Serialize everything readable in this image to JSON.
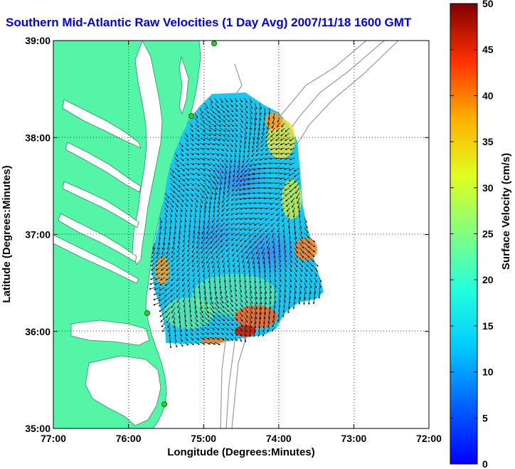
{
  "title": "Southern Mid-Atlantic Raw Velocities (1 Day Avg) 2007/11/18 1600 GMT",
  "x_axis_label": "Longitude (Degrees:Minutes)",
  "y_axis_label": "Latitude (Degrees:Minutes)",
  "x_ticks": [
    "77:00",
    "76:00",
    "75:00",
    "74:00",
    "73:00",
    "72:00"
  ],
  "y_ticks": [
    "39:00",
    "38:00",
    "37:00",
    "36:00",
    "35:00"
  ],
  "colorbar": {
    "label": "Surface Velocity (cm/s)",
    "ticks": [
      "50",
      "45",
      "40",
      "35",
      "30",
      "25",
      "20",
      "15",
      "10",
      "5",
      "0"
    ],
    "min": 0,
    "max": 50
  },
  "colors": {
    "land": "#55f5a8",
    "ocean": "#ffffff",
    "bathymetry": "#9a9a9a",
    "title": "#0000ee"
  }
}
